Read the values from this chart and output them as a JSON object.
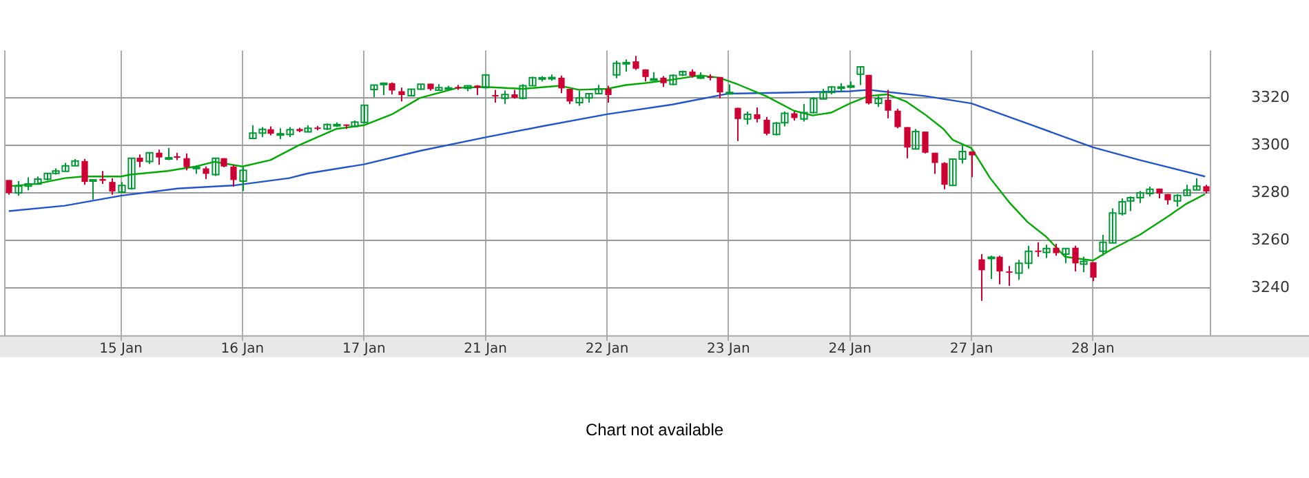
{
  "chart_data": {
    "type": "candlestick",
    "categories": [
      null,
      null,
      null,
      null,
      null,
      null,
      null,
      null,
      null,
      null,
      null,
      null,
      "15 Jan",
      null,
      null,
      null,
      null,
      null,
      null,
      null,
      null,
      null,
      null,
      null,
      null,
      "16 Jan",
      null,
      null,
      null,
      null,
      null,
      null,
      null,
      null,
      null,
      null,
      null,
      null,
      "17 Jan",
      null,
      null,
      null,
      null,
      null,
      null,
      null,
      null,
      null,
      null,
      null,
      null,
      "21 Jan",
      null,
      null,
      null,
      null,
      null,
      null,
      null,
      null,
      null,
      null,
      null,
      null,
      "22 Jan",
      null,
      null,
      null,
      null,
      null,
      null,
      null,
      null,
      null,
      null,
      null,
      null,
      "23 Jan",
      null,
      null,
      null,
      null,
      null,
      null,
      null,
      null,
      null,
      null,
      null,
      null,
      "24 Jan",
      null,
      null,
      null,
      null,
      null,
      null,
      null,
      null,
      null,
      null,
      null,
      null,
      "27 Jan",
      null,
      null,
      null,
      null,
      null,
      null,
      null,
      null,
      null,
      null,
      null,
      null,
      "28 Jan",
      null,
      null,
      null,
      null,
      null,
      null,
      null,
      null,
      null,
      null,
      null,
      null
    ],
    "ohlc": [
      [
        3285.4,
        3285.4,
        3279.2,
        3280.0
      ],
      [
        3280.0,
        3284.9,
        3278.8,
        3282.8
      ],
      [
        3282.8,
        3286.5,
        3281.1,
        3283.8
      ],
      [
        3283.7,
        3286.9,
        3283.4,
        3285.8
      ],
      [
        3285.7,
        3288.2,
        3285.2,
        3288.2
      ],
      [
        3288.2,
        3290.3,
        3287.7,
        3289.2
      ],
      [
        3289.1,
        3292.6,
        3289.1,
        3291.4
      ],
      [
        3291.4,
        3294.2,
        3291.4,
        3293.4
      ],
      [
        3293.4,
        3294.3,
        3283.4,
        3284.6
      ],
      [
        3285.4,
        3285.5,
        3277.2,
        3285.5
      ],
      [
        3285.8,
        3289.2,
        3283.8,
        3285.1
      ],
      [
        3284.6,
        3286.2,
        3279.2,
        3280.6
      ],
      [
        3280.3,
        3284.6,
        3280.0,
        3283.1
      ],
      [
        3281.8,
        3294.6,
        3281.4,
        3294.6
      ],
      [
        3294.8,
        3296.2,
        3290.8,
        3293.1
      ],
      [
        3293.2,
        3296.9,
        3292.2,
        3296.9
      ],
      [
        3296.9,
        3298.2,
        3291.8,
        3294.9
      ],
      [
        3294.5,
        3298.9,
        3293.8,
        3294.8
      ],
      [
        3295.4,
        3296.9,
        3293.8,
        3294.8
      ],
      [
        3294.6,
        3296.6,
        3289.5,
        3290.8
      ],
      [
        3290.3,
        3291.5,
        3288.0,
        3290.8
      ],
      [
        3290.3,
        3291.1,
        3285.8,
        3288.0
      ],
      [
        3287.7,
        3294.6,
        3287.1,
        3294.6
      ],
      [
        3294.6,
        3294.6,
        3290.8,
        3291.1
      ],
      [
        3291.1,
        3291.8,
        3282.6,
        3285.4
      ],
      [
        3284.9,
        3290.8,
        3280.8,
        3289.5
      ],
      [
        3302.9,
        3308.5,
        3302.9,
        3305.2
      ],
      [
        3305.2,
        3307.7,
        3303.4,
        3306.8
      ],
      [
        3306.8,
        3308.0,
        3304.2,
        3304.9
      ],
      [
        3304.8,
        3307.2,
        3302.6,
        3304.9
      ],
      [
        3304.6,
        3307.7,
        3303.5,
        3306.6
      ],
      [
        3306.9,
        3307.4,
        3305.5,
        3306.0
      ],
      [
        3305.7,
        3308.5,
        3305.7,
        3307.2
      ],
      [
        3307.5,
        3308.2,
        3306.3,
        3307.1
      ],
      [
        3306.9,
        3309.2,
        3306.5,
        3308.8
      ],
      [
        3308.6,
        3309.7,
        3307.7,
        3308.8
      ],
      [
        3308.8,
        3308.8,
        3306.9,
        3308.5
      ],
      [
        3308.0,
        3310.5,
        3307.7,
        3309.8
      ],
      [
        3309.7,
        3316.9,
        3309.4,
        3316.9
      ],
      [
        3323.5,
        3325.4,
        3320.3,
        3325.4
      ],
      [
        3326.0,
        3326.5,
        3321.2,
        3326.2
      ],
      [
        3326.2,
        3326.5,
        3321.5,
        3323.1
      ],
      [
        3322.8,
        3324.3,
        3318.5,
        3321.2
      ],
      [
        3320.9,
        3323.7,
        3320.9,
        3323.7
      ],
      [
        3323.7,
        3325.8,
        3323.4,
        3325.8
      ],
      [
        3326.0,
        3326.0,
        3323.1,
        3323.7
      ],
      [
        3323.2,
        3325.8,
        3323.2,
        3324.3
      ],
      [
        3324.0,
        3325.1,
        3323.5,
        3324.2
      ],
      [
        3324.6,
        3325.5,
        3323.4,
        3324.3
      ],
      [
        3324.0,
        3325.1,
        3322.8,
        3325.1
      ],
      [
        3325.2,
        3325.4,
        3321.2,
        3324.3
      ],
      [
        3324.3,
        3329.7,
        3324.0,
        3329.7
      ],
      [
        3321.2,
        3323.4,
        3318.0,
        3320.6
      ],
      [
        3319.8,
        3323.1,
        3317.5,
        3321.4
      ],
      [
        3321.5,
        3323.4,
        3319.7,
        3320.0
      ],
      [
        3319.8,
        3325.8,
        3319.4,
        3325.1
      ],
      [
        3325.1,
        3328.9,
        3325.1,
        3328.5
      ],
      [
        3328.3,
        3329.2,
        3326.9,
        3328.5
      ],
      [
        3328.5,
        3329.8,
        3327.2,
        3328.6
      ],
      [
        3328.5,
        3329.4,
        3322.0,
        3324.0
      ],
      [
        3323.8,
        3323.8,
        3317.4,
        3318.5
      ],
      [
        3318.0,
        3323.1,
        3316.6,
        3320.0
      ],
      [
        3320.0,
        3321.8,
        3318.0,
        3321.8
      ],
      [
        3321.8,
        3325.5,
        3321.8,
        3323.8
      ],
      [
        3323.8,
        3325.1,
        3318.0,
        3321.2
      ],
      [
        3329.7,
        3335.7,
        3328.2,
        3334.6
      ],
      [
        3334.8,
        3336.2,
        3331.1,
        3334.9
      ],
      [
        3335.4,
        3337.7,
        3331.8,
        3332.3
      ],
      [
        3332.0,
        3332.0,
        3326.9,
        3328.8
      ],
      [
        3327.7,
        3330.8,
        3327.4,
        3328.0
      ],
      [
        3328.5,
        3329.2,
        3324.6,
        3326.2
      ],
      [
        3325.7,
        3330.0,
        3325.4,
        3329.5
      ],
      [
        3329.7,
        3331.5,
        3329.2,
        3331.1
      ],
      [
        3331.1,
        3332.0,
        3328.5,
        3329.2
      ],
      [
        3328.8,
        3330.8,
        3328.0,
        3328.9
      ],
      [
        3329.0,
        3330.0,
        3327.4,
        3328.9
      ],
      [
        3328.8,
        3328.8,
        3319.8,
        3322.3
      ],
      [
        3322.0,
        3325.7,
        3321.8,
        3322.3
      ],
      [
        3315.8,
        3315.8,
        3301.8,
        3311.1
      ],
      [
        3311.1,
        3314.2,
        3308.8,
        3313.1
      ],
      [
        3313.1,
        3316.0,
        3309.7,
        3311.1
      ],
      [
        3310.8,
        3312.0,
        3304.2,
        3304.9
      ],
      [
        3304.6,
        3309.8,
        3304.2,
        3309.4
      ],
      [
        3309.5,
        3314.2,
        3308.0,
        3313.5
      ],
      [
        3313.5,
        3314.2,
        3310.5,
        3311.5
      ],
      [
        3311.1,
        3317.4,
        3310.0,
        3313.8
      ],
      [
        3313.8,
        3320.3,
        3313.5,
        3319.7
      ],
      [
        3319.5,
        3323.8,
        3319.5,
        3322.3
      ],
      [
        3322.3,
        3324.9,
        3321.5,
        3324.6
      ],
      [
        3324.5,
        3326.2,
        3322.3,
        3324.6
      ],
      [
        3325.0,
        3326.9,
        3324.2,
        3325.1
      ],
      [
        3330.0,
        3333.1,
        3325.4,
        3333.1
      ],
      [
        3329.7,
        3329.7,
        3317.2,
        3317.7
      ],
      [
        3317.7,
        3320.8,
        3316.2,
        3319.7
      ],
      [
        3319.2,
        3323.4,
        3311.4,
        3314.6
      ],
      [
        3314.6,
        3315.4,
        3307.2,
        3307.7
      ],
      [
        3307.7,
        3307.7,
        3294.6,
        3299.1
      ],
      [
        3298.5,
        3306.9,
        3298.2,
        3305.8
      ],
      [
        3305.8,
        3305.8,
        3296.6,
        3296.9
      ],
      [
        3296.9,
        3296.9,
        3288.0,
        3292.6
      ],
      [
        3292.6,
        3292.9,
        3281.5,
        3283.4
      ],
      [
        3283.1,
        3294.2,
        3283.1,
        3294.2
      ],
      [
        3294.2,
        3300.0,
        3292.3,
        3297.4
      ],
      [
        3297.4,
        3297.4,
        3286.6,
        3295.8
      ],
      [
        3252.0,
        3254.2,
        3234.5,
        3247.4
      ],
      [
        3252.8,
        3253.5,
        3243.7,
        3252.9
      ],
      [
        3253.1,
        3253.5,
        3241.5,
        3246.9
      ],
      [
        3246.9,
        3249.2,
        3240.8,
        3246.8
      ],
      [
        3246.2,
        3251.8,
        3243.4,
        3250.3
      ],
      [
        3250.3,
        3257.7,
        3248.0,
        3255.4
      ],
      [
        3255.7,
        3259.2,
        3253.1,
        3255.4
      ],
      [
        3254.9,
        3258.2,
        3252.6,
        3256.6
      ],
      [
        3256.9,
        3258.5,
        3253.5,
        3254.6
      ],
      [
        3254.2,
        3256.6,
        3250.3,
        3256.6
      ],
      [
        3256.9,
        3257.7,
        3246.9,
        3250.3
      ],
      [
        3250.0,
        3253.1,
        3246.6,
        3251.1
      ],
      [
        3250.8,
        3250.8,
        3242.8,
        3244.3
      ],
      [
        3255.4,
        3262.3,
        3253.5,
        3259.2
      ],
      [
        3258.9,
        3273.5,
        3258.9,
        3271.5
      ],
      [
        3271.2,
        3277.7,
        3270.5,
        3276.2
      ],
      [
        3276.6,
        3278.5,
        3272.3,
        3278.0
      ],
      [
        3278.0,
        3280.8,
        3275.7,
        3280.0
      ],
      [
        3279.7,
        3282.6,
        3278.5,
        3281.5
      ],
      [
        3281.8,
        3281.8,
        3277.7,
        3279.7
      ],
      [
        3279.5,
        3279.5,
        3275.1,
        3276.9
      ],
      [
        3276.6,
        3279.5,
        3274.2,
        3278.9
      ],
      [
        3278.9,
        3283.4,
        3278.9,
        3281.2
      ],
      [
        3281.2,
        3286.2,
        3281.2,
        3282.8
      ],
      [
        3282.8,
        3283.4,
        3279.7,
        3280.6
      ]
    ],
    "colors": [
      "#cc0033",
      "#009933",
      "#009933",
      "#009933",
      "#009933",
      "#009933",
      "#009933",
      "#009933",
      "#cc0033",
      "#009933",
      "#cc0033",
      "#cc0033",
      "#009933",
      "#009933",
      "#cc0033",
      "#009933",
      "#cc0033",
      "#009933",
      "#cc0033",
      "#cc0033",
      "#009933",
      "#cc0033",
      "#009933",
      "#cc0033",
      "#cc0033",
      "#009933",
      "#009933",
      "#009933",
      "#cc0033",
      "#009933",
      "#009933",
      "#cc0033",
      "#009933",
      "#cc0033",
      "#009933",
      "#009933",
      "#cc0033",
      "#009933",
      "#009933",
      "#009933",
      "#009933",
      "#cc0033",
      "#cc0033",
      "#009933",
      "#009933",
      "#cc0033",
      "#009933",
      "#009933",
      "#cc0033",
      "#009933",
      "#cc0033",
      "#009933",
      "#cc0033",
      "#009933",
      "#cc0033",
      "#009933",
      "#009933",
      "#009933",
      "#009933",
      "#cc0033",
      "#cc0033",
      "#009933",
      "#009933",
      "#009933",
      "#cc0033",
      "#009933",
      "#009933",
      "#cc0033",
      "#cc0033",
      "#009933",
      "#cc0033",
      "#009933",
      "#009933",
      "#cc0033",
      "#009933",
      "#cc0033",
      "#cc0033",
      "#009933",
      "#cc0033",
      "#009933",
      "#cc0033",
      "#cc0033",
      "#009933",
      "#009933",
      "#cc0033",
      "#009933",
      "#009933",
      "#009933",
      "#009933",
      "#009933",
      "#009933",
      "#009933",
      "#cc0033",
      "#009933",
      "#cc0033",
      "#cc0033",
      "#cc0033",
      "#009933",
      "#cc0033",
      "#cc0033",
      "#cc0033",
      "#009933",
      "#009933",
      "#cc0033",
      "#cc0033",
      "#009933",
      "#cc0033",
      "#cc0033",
      "#009933",
      "#009933",
      "#cc0033",
      "#009933",
      "#cc0033",
      "#009933",
      "#cc0033",
      "#009933",
      "#cc0033",
      "#009933",
      "#009933",
      "#009933",
      "#009933",
      "#009933",
      "#009933",
      "#cc0033",
      "#cc0033",
      "#009933",
      "#009933",
      "#009933",
      "#cc0033"
    ],
    "series": [
      {
        "type": "line",
        "color": "#00aa00",
        "values": [
          3282.8,
          null,
          null,
          3283.8,
          null,
          null,
          3286.2,
          null,
          3286.9,
          null,
          null,
          null,
          3286.9,
          3287.7,
          null,
          null,
          null,
          3289.2,
          null,
          null,
          3291.1,
          null,
          3293.1,
          null,
          null,
          3291.1,
          null,
          null,
          3293.8,
          null,
          null,
          3300.0,
          null,
          null,
          null,
          3306.9,
          null,
          null,
          3308.5,
          null,
          null,
          3313.1,
          null,
          null,
          3320.0,
          null,
          null,
          null,
          3324.2,
          null,
          null,
          3324.6,
          null,
          null,
          null,
          3323.8,
          null,
          null,
          null,
          3325.1,
          null,
          3323.4,
          null,
          null,
          3323.8,
          null,
          3325.4,
          null,
          3326.2,
          null,
          null,
          3327.7,
          null,
          null,
          3329.5,
          null,
          3328.5,
          null,
          3325.7,
          null,
          null,
          3320.8,
          null,
          null,
          3314.6,
          null,
          3312.6,
          null,
          3313.8,
          null,
          3317.7,
          null,
          3320.8,
          null,
          3321.5,
          null,
          3318.5,
          null,
          3313.1,
          null,
          3306.9,
          3302.3,
          null,
          3298.8,
          null,
          3286.2,
          null,
          3276.2,
          null,
          3267.7,
          null,
          3261.5,
          null,
          3253.1,
          null,
          3252.0,
          3251.5,
          null,
          3256.2,
          null,
          null,
          3262.3,
          null,
          null,
          3270.0,
          null,
          3275.4,
          null,
          3279.5
        ]
      },
      {
        "type": "line",
        "color": "#2255cc",
        "values": [
          3272.3,
          null,
          null,
          null,
          null,
          null,
          3274.6,
          null,
          null,
          null,
          null,
          null,
          3278.8,
          null,
          null,
          null,
          null,
          null,
          3281.8,
          null,
          null,
          null,
          null,
          null,
          3283.1,
          null,
          null,
          null,
          null,
          null,
          3286.2,
          null,
          3288.2,
          null,
          null,
          null,
          null,
          null,
          3292.0,
          null,
          null,
          null,
          null,
          null,
          3297.7,
          null,
          null,
          null,
          null,
          null,
          null,
          3303.4,
          null,
          null,
          null,
          null,
          null,
          3308.0,
          null,
          null,
          null,
          null,
          null,
          null,
          3313.1,
          null,
          null,
          null,
          null,
          null,
          null,
          3317.2,
          null,
          null,
          null,
          null,
          null,
          3321.8,
          null,
          null,
          null,
          null,
          null,
          null,
          3322.3,
          null,
          null,
          null,
          null,
          null,
          3322.8,
          null,
          3323.4,
          null,
          null,
          null,
          null,
          null,
          3320.8,
          null,
          null,
          null,
          null,
          3317.7,
          null,
          null,
          null,
          null,
          null,
          3309.2,
          null,
          null,
          null,
          null,
          null,
          null,
          3299.2,
          null,
          null,
          null,
          null,
          3293.8,
          null,
          null,
          null,
          null,
          null,
          null,
          3286.9
        ]
      }
    ],
    "ylim": [
      3220,
      3340
    ],
    "yticks": [
      3240,
      3260,
      3280,
      3300,
      3320
    ],
    "grid": true,
    "legend": false,
    "marker": "none",
    "line_style": "solid",
    "annotations": [
      "Chart not available"
    ]
  }
}
